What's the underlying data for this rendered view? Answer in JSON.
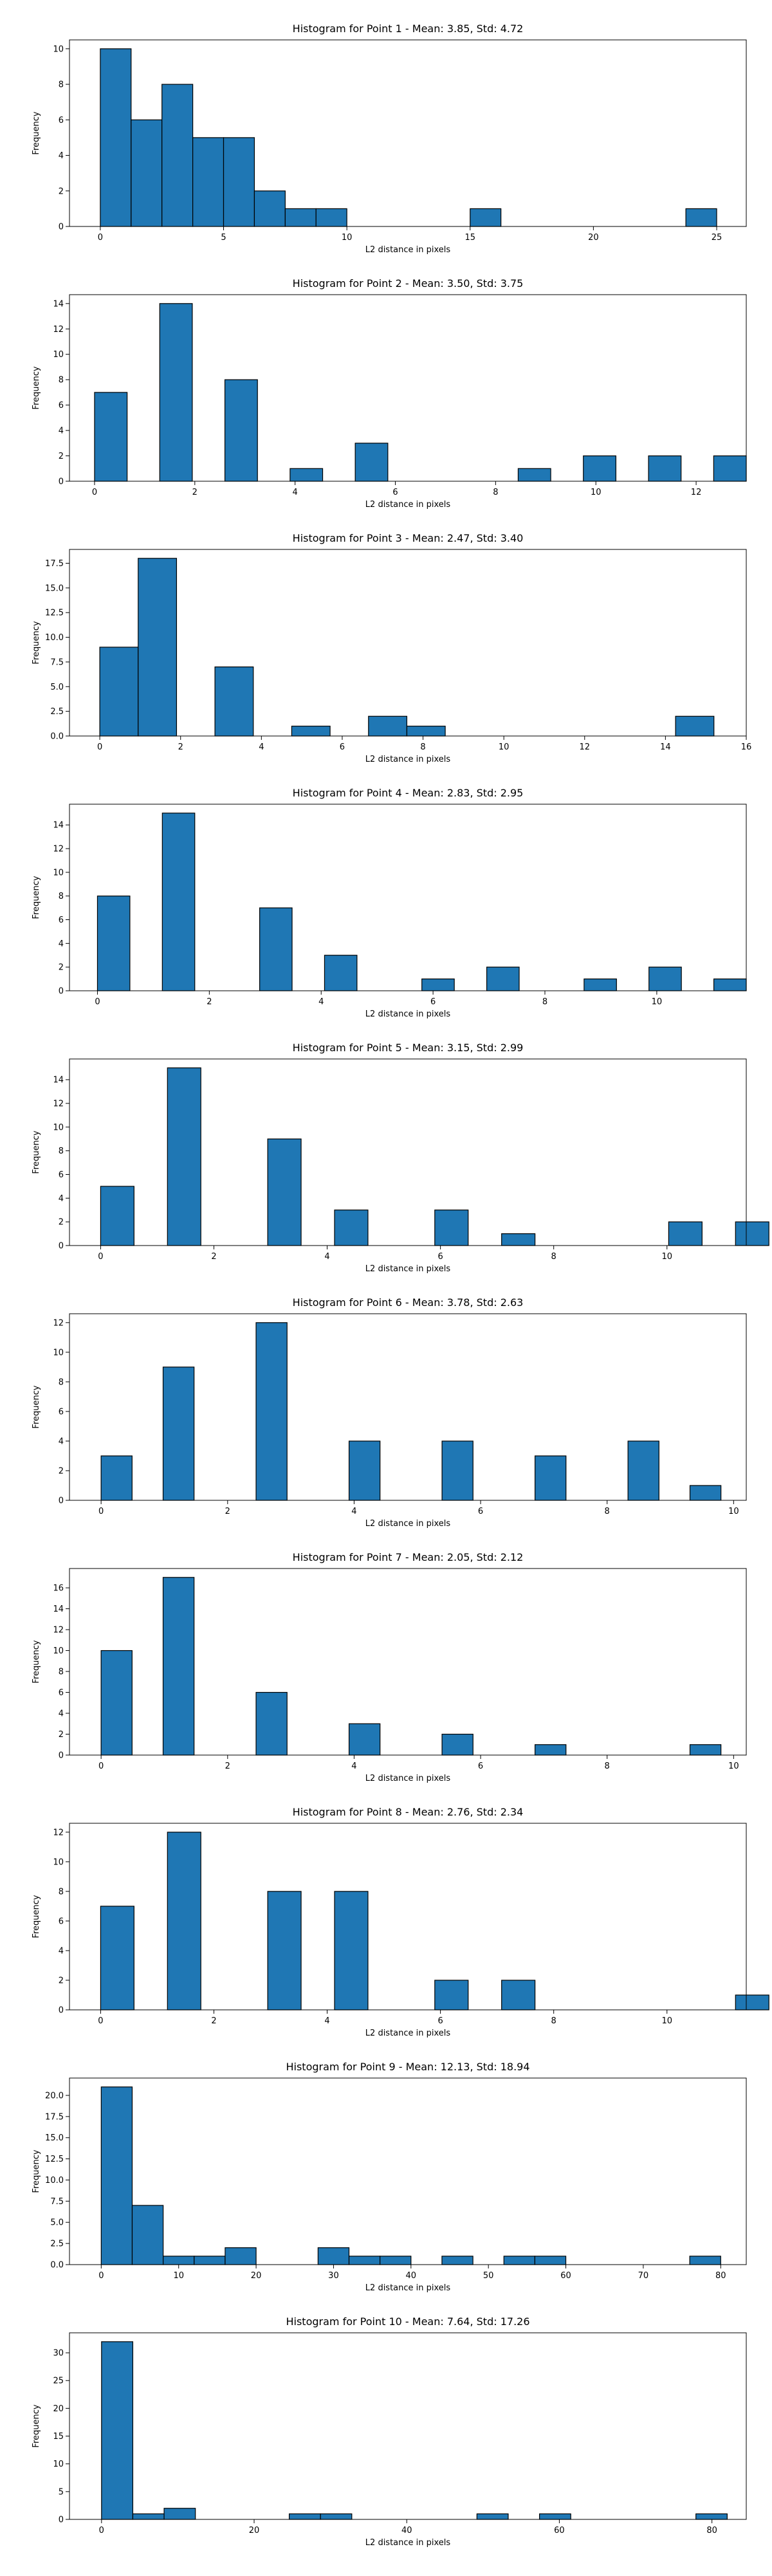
{
  "figure": {
    "bar_color": "#1f77b4",
    "edge_color": "#000000"
  },
  "chart_data": [
    {
      "type": "bar",
      "title": "Histogram for Point 1 - Mean: 3.85, Std: 4.72",
      "xlabel": "L2 distance in pixels",
      "ylabel": "Frequency",
      "xlim": [
        -1.25,
        26.2
      ],
      "ylim": [
        0,
        10.5
      ],
      "xticks": [
        0,
        5,
        10,
        15,
        20,
        25
      ],
      "xtick_labels": [
        "0",
        "5",
        "10",
        "15",
        "20",
        "25"
      ],
      "yticks": [
        0,
        2,
        4,
        6,
        8,
        10
      ],
      "ytick_labels": [
        "0",
        "2",
        "4",
        "6",
        "8",
        "10"
      ],
      "bin_edges": [
        0,
        1.25,
        2.5,
        3.75,
        5,
        6.25,
        7.5,
        8.75,
        10,
        11.25,
        12.5,
        13.75,
        15,
        16.25,
        17.5,
        18.75,
        20,
        21.25,
        22.5,
        23.75,
        25
      ],
      "values": [
        10,
        6,
        8,
        5,
        5,
        2,
        1,
        1,
        0,
        0,
        0,
        0,
        1,
        0,
        0,
        0,
        0,
        0,
        0,
        1
      ],
      "grid": false
    },
    {
      "type": "bar",
      "title": "Histogram for Point 2 - Mean: 3.50, Std: 3.75",
      "xlabel": "L2 distance in pixels",
      "ylabel": "Frequency",
      "xlim": [
        -0.5,
        13.0
      ],
      "ylim": [
        0,
        14.7
      ],
      "xticks": [
        0,
        2,
        4,
        6,
        8,
        10,
        12
      ],
      "xtick_labels": [
        "0",
        "2",
        "4",
        "6",
        "8",
        "10",
        "12"
      ],
      "yticks": [
        0,
        2,
        4,
        6,
        8,
        10,
        12,
        14
      ],
      "ytick_labels": [
        "0",
        "2",
        "4",
        "6",
        "8",
        "10",
        "12",
        "14"
      ],
      "bin_edges": [
        0,
        0.65,
        1.3,
        1.95,
        2.6,
        3.25,
        3.9,
        4.55,
        5.2,
        5.85,
        6.5,
        7.15,
        7.8,
        8.45,
        9.1,
        9.75,
        10.4,
        11.05,
        11.7,
        12.35,
        13.0
      ],
      "values": [
        7,
        0,
        14,
        0,
        8,
        0,
        1,
        0,
        3,
        0,
        0,
        0,
        0,
        1,
        0,
        2,
        0,
        2,
        0,
        2
      ],
      "grid": false
    },
    {
      "type": "bar",
      "title": "Histogram for Point 3 - Mean: 2.47, Std: 3.40",
      "xlabel": "L2 distance in pixels",
      "ylabel": "Frequency",
      "xlim": [
        -0.75,
        16.0
      ],
      "ylim": [
        0,
        18.9
      ],
      "xticks": [
        0,
        2,
        4,
        6,
        8,
        10,
        12,
        14,
        16
      ],
      "xtick_labels": [
        "0",
        "2",
        "4",
        "6",
        "8",
        "10",
        "12",
        "14",
        "16"
      ],
      "yticks": [
        0,
        2.5,
        5,
        7.5,
        10,
        12.5,
        15,
        17.5
      ],
      "ytick_labels": [
        "0.0",
        "2.5",
        "5.0",
        "7.5",
        "10.0",
        "12.5",
        "15.0",
        "17.5"
      ],
      "bin_edges": [
        0,
        0.95,
        1.9,
        2.85,
        3.8,
        4.75,
        5.7,
        6.65,
        7.6,
        8.55,
        9.5,
        10.45,
        11.4,
        12.35,
        13.3,
        14.25,
        15.2
      ],
      "values": [
        9,
        18,
        0,
        7,
        0,
        1,
        0,
        2,
        1,
        0,
        0,
        0,
        0,
        0,
        0,
        2
      ],
      "grid": false
    },
    {
      "type": "bar",
      "title": "Histogram for Point 4 - Mean: 2.83, Std: 2.95",
      "xlabel": "L2 distance in pixels",
      "ylabel": "Frequency",
      "xlim": [
        -0.5,
        11.6
      ],
      "ylim": [
        0,
        15.75
      ],
      "xticks": [
        0,
        2,
        4,
        6,
        8,
        10
      ],
      "xtick_labels": [
        "0",
        "2",
        "4",
        "6",
        "8",
        "10"
      ],
      "yticks": [
        0,
        2,
        4,
        6,
        8,
        10,
        12,
        14
      ],
      "ytick_labels": [
        "0",
        "2",
        "4",
        "6",
        "8",
        "10",
        "12",
        "14"
      ],
      "bin_edges": [
        0,
        0.58,
        1.16,
        1.74,
        2.32,
        2.9,
        3.48,
        4.06,
        4.64,
        5.22,
        5.8,
        6.38,
        6.96,
        7.54,
        8.12,
        8.7,
        9.28,
        9.86,
        10.44,
        11.02,
        11.6
      ],
      "values": [
        8,
        0,
        15,
        0,
        0,
        7,
        0,
        3,
        0,
        0,
        1,
        0,
        2,
        0,
        0,
        1,
        0,
        2,
        0,
        1
      ],
      "grid": false
    },
    {
      "type": "bar",
      "title": "Histogram for Point 5 - Mean: 3.15, Std: 2.99",
      "xlabel": "L2 distance in pixels",
      "ylabel": "Frequency",
      "xlim": [
        -0.55,
        11.4
      ],
      "ylim": [
        0,
        15.75
      ],
      "xticks": [
        0,
        2,
        4,
        6,
        8,
        10
      ],
      "xtick_labels": [
        "0",
        "2",
        "4",
        "6",
        "8",
        "10"
      ],
      "yticks": [
        0,
        2,
        4,
        6,
        8,
        10,
        12,
        14
      ],
      "ytick_labels": [
        "0",
        "2",
        "4",
        "6",
        "8",
        "10",
        "12",
        "14"
      ],
      "bin_edges": [
        0,
        0.59,
        1.18,
        1.77,
        2.36,
        2.95,
        3.54,
        4.13,
        4.72,
        5.31,
        5.9,
        6.49,
        7.08,
        7.67,
        8.26,
        8.85,
        9.44,
        10.03,
        10.62,
        11.21,
        11.8
      ],
      "values": [
        5,
        0,
        15,
        0,
        0,
        9,
        0,
        3,
        0,
        0,
        3,
        0,
        1,
        0,
        0,
        0,
        0,
        2,
        0,
        2
      ],
      "grid": false
    },
    {
      "type": "bar",
      "title": "Histogram for Point 6 - Mean: 3.78, Std: 2.63",
      "xlabel": "L2 distance in pixels",
      "ylabel": "Frequency",
      "xlim": [
        -0.5,
        10.2
      ],
      "ylim": [
        0,
        12.6
      ],
      "xticks": [
        0,
        2,
        4,
        6,
        8,
        10
      ],
      "xtick_labels": [
        "0",
        "2",
        "4",
        "6",
        "8",
        "10"
      ],
      "yticks": [
        0,
        2,
        4,
        6,
        8,
        10,
        12
      ],
      "ytick_labels": [
        "0",
        "2",
        "4",
        "6",
        "8",
        "10",
        "12"
      ],
      "bin_edges": [
        0,
        0.49,
        0.98,
        1.47,
        1.96,
        2.45,
        2.94,
        3.43,
        3.92,
        4.41,
        4.9,
        5.39,
        5.88,
        6.37,
        6.86,
        7.35,
        7.84,
        8.33,
        8.82,
        9.31,
        9.8
      ],
      "values": [
        3,
        0,
        9,
        0,
        0,
        12,
        0,
        0,
        4,
        0,
        0,
        4,
        0,
        0,
        3,
        0,
        0,
        4,
        0,
        1
      ],
      "grid": false
    },
    {
      "type": "bar",
      "title": "Histogram for Point 7 - Mean: 2.05, Std: 2.12",
      "xlabel": "L2 distance in pixels",
      "ylabel": "Frequency",
      "xlim": [
        -0.5,
        10.2
      ],
      "ylim": [
        0,
        17.85
      ],
      "xticks": [
        0,
        2,
        4,
        6,
        8,
        10
      ],
      "xtick_labels": [
        "0",
        "2",
        "4",
        "6",
        "8",
        "10"
      ],
      "yticks": [
        0,
        2,
        4,
        6,
        8,
        10,
        12,
        14,
        16
      ],
      "ytick_labels": [
        "0",
        "2",
        "4",
        "6",
        "8",
        "10",
        "12",
        "14",
        "16"
      ],
      "bin_edges": [
        0,
        0.49,
        0.98,
        1.47,
        1.96,
        2.45,
        2.94,
        3.43,
        3.92,
        4.41,
        4.9,
        5.39,
        5.88,
        6.37,
        6.86,
        7.35,
        7.84,
        8.33,
        8.82,
        9.31,
        9.8
      ],
      "values": [
        10,
        0,
        17,
        0,
        0,
        6,
        0,
        0,
        3,
        0,
        0,
        2,
        0,
        0,
        1,
        0,
        0,
        0,
        0,
        1
      ],
      "grid": false
    },
    {
      "type": "bar",
      "title": "Histogram for Point 8 - Mean: 2.76, Std: 2.34",
      "xlabel": "L2 distance in pixels",
      "ylabel": "Frequency",
      "xlim": [
        -0.55,
        11.4
      ],
      "ylim": [
        0,
        12.6
      ],
      "xticks": [
        0,
        2,
        4,
        6,
        8,
        10
      ],
      "xtick_labels": [
        "0",
        "2",
        "4",
        "6",
        "8",
        "10"
      ],
      "yticks": [
        0,
        2,
        4,
        6,
        8,
        10,
        12
      ],
      "ytick_labels": [
        "0",
        "2",
        "4",
        "6",
        "8",
        "10",
        "12"
      ],
      "bin_edges": [
        0,
        0.59,
        1.18,
        1.77,
        2.36,
        2.95,
        3.54,
        4.13,
        4.72,
        5.31,
        5.9,
        6.49,
        7.08,
        7.67,
        8.26,
        8.85,
        9.44,
        10.03,
        10.62,
        11.21,
        11.8
      ],
      "values": [
        7,
        0,
        12,
        0,
        0,
        8,
        0,
        8,
        0,
        0,
        2,
        0,
        2,
        0,
        0,
        0,
        0,
        0,
        0,
        1
      ],
      "grid": false
    },
    {
      "type": "bar",
      "title": "Histogram for Point 9 - Mean: 12.13, Std: 18.94",
      "xlabel": "L2 distance in pixels",
      "ylabel": "Frequency",
      "xlim": [
        -4.1,
        83.3
      ],
      "ylim": [
        0,
        22.05
      ],
      "xticks": [
        0,
        10,
        20,
        30,
        40,
        50,
        60,
        70,
        80
      ],
      "xtick_labels": [
        "0",
        "10",
        "20",
        "30",
        "40",
        "50",
        "60",
        "70",
        "80"
      ],
      "yticks": [
        0,
        2.5,
        5,
        7.5,
        10,
        12.5,
        15,
        17.5,
        20
      ],
      "ytick_labels": [
        "0.0",
        "2.5",
        "5.0",
        "7.5",
        "10.0",
        "12.5",
        "15.0",
        "17.5",
        "20.0"
      ],
      "bin_edges": [
        0,
        4,
        8,
        12,
        16,
        20,
        24,
        28,
        32,
        36,
        40,
        44,
        48,
        52,
        56,
        60,
        64,
        68,
        72,
        76,
        80
      ],
      "values": [
        21,
        7,
        1,
        1,
        2,
        0,
        0,
        2,
        1,
        1,
        0,
        1,
        0,
        1,
        1,
        0,
        0,
        0,
        0,
        1
      ],
      "grid": false
    },
    {
      "type": "bar",
      "title": "Histogram for Point 10 - Mean: 7.64, Std: 17.26",
      "xlabel": "L2 distance in pixels",
      "ylabel": "Frequency",
      "xlim": [
        -4.2,
        84.5
      ],
      "ylim": [
        0,
        33.6
      ],
      "xticks": [
        0,
        20,
        40,
        60,
        80
      ],
      "xtick_labels": [
        "0",
        "20",
        "40",
        "60",
        "80"
      ],
      "yticks": [
        0,
        5,
        10,
        15,
        20,
        25,
        30
      ],
      "ytick_labels": [
        "0",
        "5",
        "10",
        "15",
        "20",
        "25",
        "30"
      ],
      "bin_edges": [
        0,
        4.1,
        8.2,
        12.3,
        16.4,
        20.5,
        24.6,
        28.7,
        32.8,
        36.9,
        41.0,
        45.1,
        49.2,
        53.3,
        57.4,
        61.5,
        65.6,
        69.7,
        73.8,
        77.9,
        82.0
      ],
      "values": [
        32,
        1,
        2,
        0,
        0,
        0,
        1,
        1,
        0,
        0,
        0,
        0,
        1,
        0,
        1,
        0,
        0,
        0,
        0,
        1
      ],
      "grid": false
    }
  ]
}
